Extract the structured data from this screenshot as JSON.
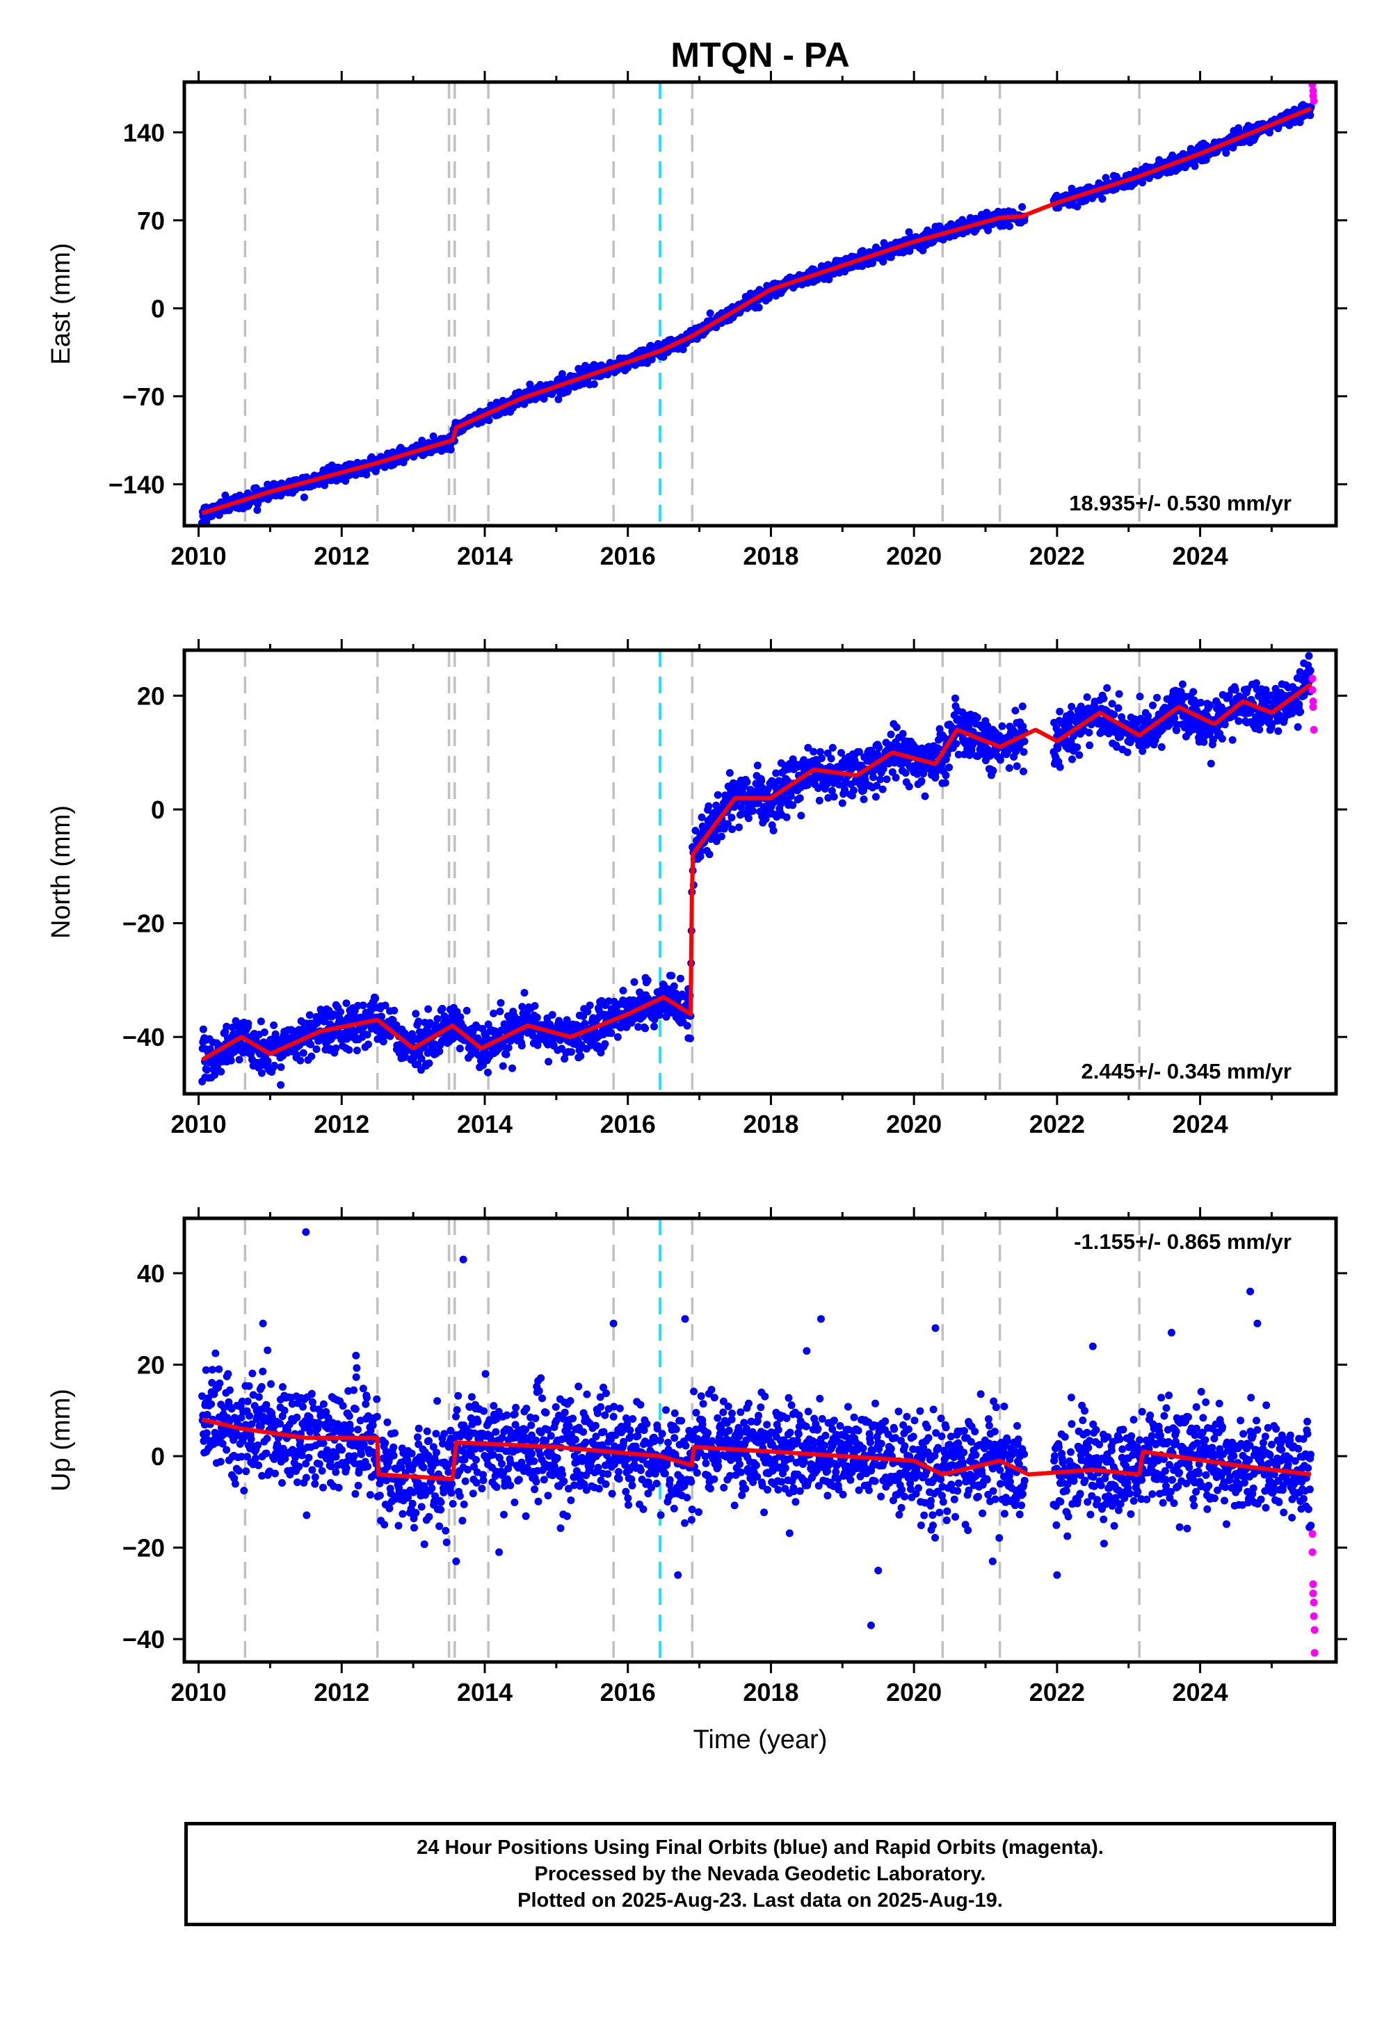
{
  "title": "MTQN - PA",
  "footer": {
    "line1": "24 Hour Positions Using Final Orbits (blue) and Rapid Orbits (magenta).",
    "line2": "Processed by the Nevada Geodetic Laboratory.",
    "line3": "Plotted on 2025-Aug-23. Last data on 2025-Aug-19."
  },
  "colors": {
    "final_orbits": "#0000ff",
    "rapid_orbits": "#ff00ff",
    "model": "#ff0000",
    "event_lines": "#c0c0c0",
    "antenna_change": "#00e5ff"
  },
  "chart_data": [
    {
      "type": "scatter",
      "name": "east",
      "ylabel": "East (mm)",
      "xlim": [
        2009.8,
        2025.9
      ],
      "ylim": [
        -173,
        180
      ],
      "xticks": [
        2010,
        2012,
        2014,
        2016,
        2018,
        2020,
        2022,
        2024
      ],
      "yticks": [
        -140,
        -70,
        0,
        70,
        140
      ],
      "rate_label": "18.935+/- 0.530 mm/yr",
      "trend": [
        [
          2010.05,
          -163
        ],
        [
          2011.0,
          -146
        ],
        [
          2012.5,
          -123
        ],
        [
          2013.55,
          -105
        ],
        [
          2013.6,
          -95
        ],
        [
          2014.5,
          -72
        ],
        [
          2016.45,
          -34
        ],
        [
          2016.9,
          -22
        ],
        [
          2018.0,
          15
        ],
        [
          2020.0,
          53
        ],
        [
          2021.2,
          72
        ],
        [
          2021.5,
          73
        ],
        [
          2022.0,
          84
        ],
        [
          2023.15,
          105
        ],
        [
          2024.0,
          123
        ],
        [
          2025.6,
          160
        ]
      ],
      "final_orbit_range": [
        2010.05,
        2025.55
      ],
      "data_gap": [
        2021.55,
        2021.95
      ],
      "noise_mm": 2.8,
      "rapid_points": [
        [
          2025.57,
          183
        ],
        [
          2025.57,
          178
        ],
        [
          2025.58,
          173
        ],
        [
          2025.58,
          169
        ],
        [
          2025.59,
          165
        ]
      ]
    },
    {
      "type": "scatter",
      "name": "north",
      "ylabel": "North (mm)",
      "xlim": [
        2009.8,
        2025.9
      ],
      "ylim": [
        -50,
        28
      ],
      "xticks": [
        2010,
        2012,
        2014,
        2016,
        2018,
        2020,
        2022,
        2024
      ],
      "yticks": [
        -40,
        -20,
        0,
        20
      ],
      "rate_label": "2.445+/- 0.345 mm/yr",
      "trend": [
        [
          2010.05,
          -44
        ],
        [
          2010.6,
          -40
        ],
        [
          2011.0,
          -43
        ],
        [
          2011.7,
          -39
        ],
        [
          2012.5,
          -37
        ],
        [
          2013.0,
          -42
        ],
        [
          2013.55,
          -38
        ],
        [
          2013.95,
          -42
        ],
        [
          2014.6,
          -38
        ],
        [
          2015.2,
          -40
        ],
        [
          2016.0,
          -36
        ],
        [
          2016.5,
          -33
        ],
        [
          2016.88,
          -36
        ],
        [
          2016.9,
          -8
        ],
        [
          2017.5,
          2
        ],
        [
          2018.0,
          2
        ],
        [
          2018.6,
          7
        ],
        [
          2019.2,
          6
        ],
        [
          2019.7,
          10
        ],
        [
          2020.3,
          8
        ],
        [
          2020.6,
          14
        ],
        [
          2021.2,
          11
        ],
        [
          2021.7,
          14
        ],
        [
          2022.0,
          12
        ],
        [
          2022.6,
          17
        ],
        [
          2023.15,
          13
        ],
        [
          2023.7,
          18
        ],
        [
          2024.2,
          15
        ],
        [
          2024.6,
          19
        ],
        [
          2025.0,
          17
        ],
        [
          2025.55,
          22
        ]
      ],
      "final_orbit_range": [
        2010.05,
        2025.55
      ],
      "data_gap": [
        2021.55,
        2021.95
      ],
      "noise_mm": 2.0,
      "rapid_points": [
        [
          2025.57,
          23
        ],
        [
          2025.57,
          21
        ],
        [
          2025.58,
          19
        ],
        [
          2025.58,
          18
        ],
        [
          2025.59,
          14
        ]
      ]
    },
    {
      "type": "scatter",
      "name": "up",
      "ylabel": "Up (mm)",
      "xlabel": "Time (year)",
      "xlim": [
        2009.8,
        2025.9
      ],
      "ylim": [
        -45,
        52
      ],
      "xticks": [
        2010,
        2012,
        2014,
        2016,
        2018,
        2020,
        2022,
        2024
      ],
      "yticks": [
        -40,
        -20,
        0,
        20,
        40
      ],
      "rate_label": "-1.155+/- 0.865 mm/yr",
      "trend": [
        [
          2010.05,
          8
        ],
        [
          2010.6,
          6
        ],
        [
          2011.5,
          4
        ],
        [
          2012.5,
          4
        ],
        [
          2012.5,
          -4
        ],
        [
          2013.55,
          -5
        ],
        [
          2013.6,
          3
        ],
        [
          2015.0,
          2
        ],
        [
          2016.45,
          0
        ],
        [
          2016.9,
          -2
        ],
        [
          2016.92,
          2
        ],
        [
          2018.0,
          1
        ],
        [
          2020.0,
          -1
        ],
        [
          2020.4,
          -4
        ],
        [
          2021.2,
          -1
        ],
        [
          2021.6,
          -4
        ],
        [
          2022.5,
          -3
        ],
        [
          2023.15,
          -4
        ],
        [
          2023.2,
          1
        ],
        [
          2024.5,
          -2
        ],
        [
          2025.55,
          -4
        ]
      ],
      "final_orbit_range": [
        2010.05,
        2025.55
      ],
      "data_gap": [
        2021.55,
        2021.95
      ],
      "noise_mm": 5.5,
      "outliers": [
        [
          2011.5,
          49
        ],
        [
          2013.7,
          43
        ],
        [
          2010.9,
          29
        ],
        [
          2012.2,
          22
        ],
        [
          2015.8,
          29
        ],
        [
          2016.8,
          30
        ],
        [
          2018.5,
          23
        ],
        [
          2018.7,
          30
        ],
        [
          2019.4,
          -37
        ],
        [
          2020.3,
          28
        ],
        [
          2016.7,
          -26
        ],
        [
          2022.5,
          24
        ],
        [
          2022.0,
          -26
        ],
        [
          2023.6,
          27
        ],
        [
          2024.7,
          36
        ],
        [
          2024.8,
          29
        ],
        [
          2013.6,
          -23
        ],
        [
          2014.2,
          -21
        ],
        [
          2019.5,
          -25
        ],
        [
          2021.1,
          -23
        ]
      ],
      "rapid_points": [
        [
          2025.57,
          -17
        ],
        [
          2025.57,
          -21
        ],
        [
          2025.58,
          -28
        ],
        [
          2025.58,
          -30
        ],
        [
          2025.59,
          -32
        ],
        [
          2025.59,
          -35
        ],
        [
          2025.6,
          -38
        ],
        [
          2025.6,
          -43
        ]
      ]
    }
  ],
  "event_lines": [
    2010.65,
    2012.5,
    2013.5,
    2013.58,
    2014.05,
    2015.8,
    2016.9,
    2020.4,
    2021.2,
    2023.15
  ],
  "antenna_change_line": 2016.45
}
